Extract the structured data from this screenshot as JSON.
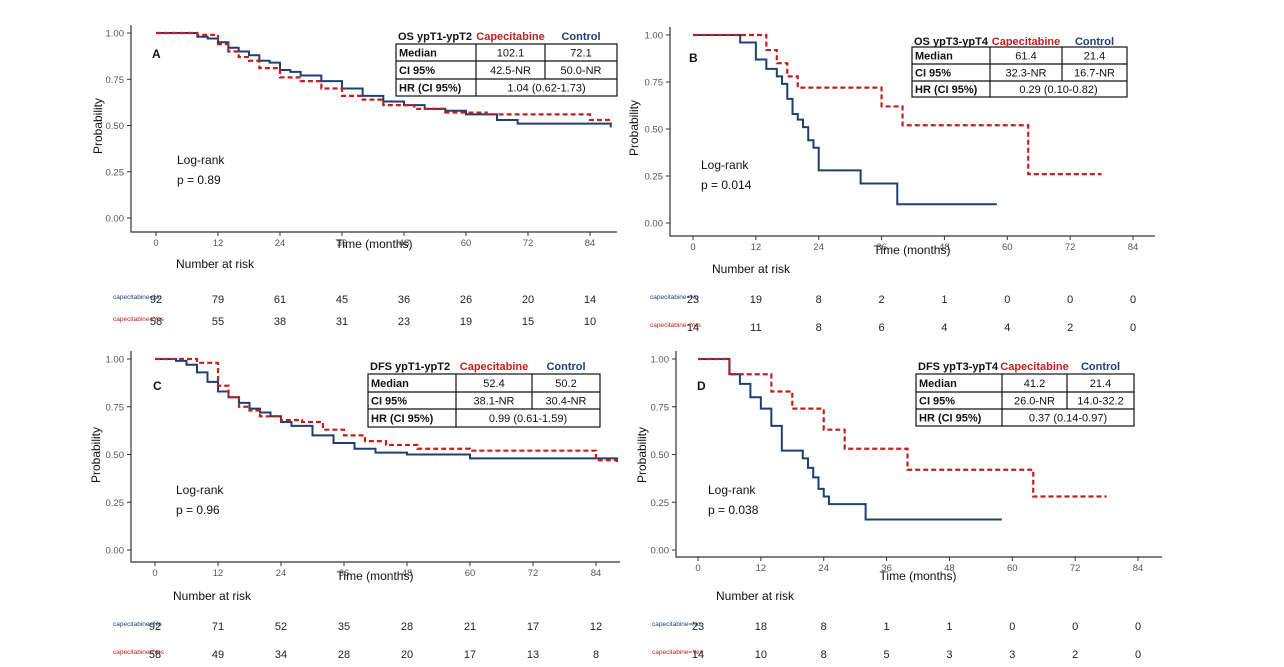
{
  "colors": {
    "control": "#1f3f73",
    "capecitabine": "#c0211f",
    "axis": "#333333"
  },
  "chart_data": [
    {
      "panel": "A",
      "type": "line",
      "xlabel": "Time (months)",
      "ylabel": "Probability",
      "xlim": [
        -3,
        88
      ],
      "ylim": [
        0,
        1
      ],
      "xticks": [
        "0",
        "12",
        "24",
        "36",
        "48",
        "60",
        "72",
        "84"
      ],
      "yticks": [
        "0.00",
        "0.25",
        "0.50",
        "0.75",
        "1.00"
      ],
      "logrank_label": "Log-rank",
      "pvalue": "p = 0.89",
      "table": {
        "title": "OS ypT1-ypT2",
        "cap_header": "Capecitabine",
        "ctrl_header": "Control",
        "median_label": "Median",
        "median_cap": "102.1",
        "median_ctrl": "72.1",
        "ci_label": "CI 95%",
        "ci_cap": "42.5-NR",
        "ci_ctrl": "50.0-NR",
        "hr_label": "HR (CI 95%)",
        "hr_value": "1.04 (0.62-1.73)"
      },
      "series": [
        {
          "name": "capecitabine=No",
          "style": "solid",
          "x": [
            0,
            6,
            8,
            10,
            12,
            14,
            16,
            18,
            20,
            22,
            24,
            26,
            28,
            32,
            36,
            40,
            44,
            48,
            52,
            56,
            60,
            66,
            70,
            88
          ],
          "y": [
            1.0,
            1.0,
            0.98,
            0.97,
            0.95,
            0.92,
            0.9,
            0.88,
            0.85,
            0.84,
            0.8,
            0.79,
            0.77,
            0.74,
            0.7,
            0.66,
            0.63,
            0.61,
            0.59,
            0.58,
            0.56,
            0.53,
            0.51,
            0.49
          ]
        },
        {
          "name": "capecitabine=Yes",
          "style": "dashed",
          "x": [
            0,
            8,
            12,
            14,
            16,
            18,
            20,
            24,
            28,
            32,
            36,
            40,
            44,
            50,
            56,
            64,
            84,
            88
          ],
          "y": [
            1.0,
            0.99,
            0.94,
            0.9,
            0.87,
            0.85,
            0.81,
            0.76,
            0.74,
            0.7,
            0.66,
            0.64,
            0.61,
            0.59,
            0.57,
            0.56,
            0.53,
            0.51
          ]
        }
      ],
      "risk": {
        "title": "Number at risk",
        "rows": [
          {
            "label": "capecitabine=No",
            "values": [
              "92",
              "79",
              "61",
              "45",
              "36",
              "26",
              "20",
              "14"
            ]
          },
          {
            "label": "capecitabine=Yes",
            "values": [
              "58",
              "55",
              "38",
              "31",
              "23",
              "19",
              "15",
              "10"
            ]
          }
        ]
      }
    },
    {
      "panel": "B",
      "type": "line",
      "xlabel": "Time (months)",
      "ylabel": "Probability",
      "xlim": [
        -3,
        88
      ],
      "ylim": [
        0,
        1
      ],
      "xticks": [
        "0",
        "12",
        "24",
        "36",
        "48",
        "60",
        "72",
        "84"
      ],
      "yticks": [
        "0.00",
        "0.25",
        "0.50",
        "0.75",
        "1.00"
      ],
      "logrank_label": "Log-rank",
      "pvalue": "p = 0.014",
      "table": {
        "title": "OS ypT3-ypT4",
        "cap_header": "Capecitabine",
        "ctrl_header": "Control",
        "median_label": "Median",
        "median_cap": "61.4",
        "median_ctrl": "21.4",
        "ci_label": "CI 95%",
        "ci_cap": "32.3-NR",
        "ci_ctrl": "16.7-NR",
        "hr_label": "HR (CI 95%)",
        "hr_value": "0.29 (0.10-0.82)"
      },
      "series": [
        {
          "name": "capecitabine=No",
          "style": "solid",
          "x": [
            0,
            9,
            12,
            14,
            16,
            17,
            18,
            19,
            20,
            21,
            22,
            23,
            24,
            32,
            39,
            58
          ],
          "y": [
            1.0,
            0.96,
            0.87,
            0.82,
            0.78,
            0.74,
            0.66,
            0.58,
            0.55,
            0.51,
            0.44,
            0.4,
            0.28,
            0.21,
            0.1,
            0.1
          ]
        },
        {
          "name": "capecitabine=Yes",
          "style": "dashed",
          "x": [
            0,
            14,
            16,
            18,
            20,
            36,
            40,
            62,
            64,
            78
          ],
          "y": [
            1.0,
            0.92,
            0.85,
            0.78,
            0.72,
            0.62,
            0.52,
            0.52,
            0.26,
            0.26
          ]
        }
      ],
      "risk": {
        "title": "Number at risk",
        "rows": [
          {
            "label": "capecitabine=No",
            "values": [
              "23",
              "19",
              "8",
              "2",
              "1",
              "0",
              "0",
              "0"
            ]
          },
          {
            "label": "capecitabine=Yes",
            "values": [
              "14",
              "11",
              "8",
              "6",
              "4",
              "4",
              "2",
              "0"
            ]
          }
        ]
      }
    },
    {
      "panel": "C",
      "type": "line",
      "xlabel": "Time (months)",
      "ylabel": "Probability",
      "xlim": [
        -3,
        88
      ],
      "ylim": [
        0,
        1
      ],
      "xticks": [
        "0",
        "12",
        "24",
        "36",
        "48",
        "60",
        "72",
        "84"
      ],
      "yticks": [
        "0.00",
        "0.25",
        "0.50",
        "0.75",
        "1.00"
      ],
      "logrank_label": "Log-rank",
      "pvalue": "p = 0.96",
      "table": {
        "title": "DFS ypT1-ypT2",
        "cap_header": "Capecitabine",
        "ctrl_header": "Control",
        "median_label": "Median",
        "median_cap": "52.4",
        "median_ctrl": "50.2",
        "ci_label": "CI 95%",
        "ci_cap": "38.1-NR",
        "ci_ctrl": "30.4-NR",
        "hr_label": "HR (CI 95%)",
        "hr_value": "0.99 (0.61-1.59)"
      },
      "series": [
        {
          "name": "capecitabine=No",
          "style": "solid",
          "x": [
            0,
            4,
            6,
            8,
            10,
            12,
            14,
            16,
            18,
            20,
            22,
            24,
            26,
            30,
            34,
            38,
            42,
            48,
            60,
            88
          ],
          "y": [
            1.0,
            0.99,
            0.97,
            0.93,
            0.88,
            0.83,
            0.8,
            0.77,
            0.74,
            0.72,
            0.7,
            0.67,
            0.65,
            0.6,
            0.56,
            0.53,
            0.51,
            0.5,
            0.48,
            0.47
          ]
        },
        {
          "name": "capecitabine=Yes",
          "style": "dashed",
          "x": [
            0,
            8,
            12,
            14,
            16,
            18,
            20,
            24,
            28,
            32,
            36,
            40,
            44,
            50,
            56,
            60,
            84,
            88
          ],
          "y": [
            1.0,
            0.98,
            0.86,
            0.8,
            0.75,
            0.73,
            0.7,
            0.68,
            0.67,
            0.63,
            0.6,
            0.57,
            0.55,
            0.53,
            0.53,
            0.52,
            0.47,
            0.46
          ]
        }
      ],
      "risk": {
        "title": "Number at risk",
        "rows": [
          {
            "label": "capecitabine=No",
            "values": [
              "92",
              "71",
              "52",
              "35",
              "28",
              "21",
              "17",
              "12"
            ]
          },
          {
            "label": "capecitabine=Yes",
            "values": [
              "58",
              "49",
              "34",
              "28",
              "20",
              "17",
              "13",
              "8"
            ]
          }
        ]
      }
    },
    {
      "panel": "D",
      "type": "line",
      "xlabel": "Time (months)",
      "ylabel": "Probability",
      "xlim": [
        -3,
        88
      ],
      "ylim": [
        0,
        1
      ],
      "xticks": [
        "0",
        "12",
        "24",
        "36",
        "48",
        "60",
        "72",
        "84"
      ],
      "yticks": [
        "0.00",
        "0.25",
        "0.50",
        "0.75",
        "1.00"
      ],
      "logrank_label": "Log-rank",
      "pvalue": "p = 0.038",
      "table": {
        "title": "DFS ypT3-ypT4",
        "cap_header": "Capecitabine",
        "ctrl_header": "Control",
        "median_label": "Median",
        "median_cap": "41.2",
        "median_ctrl": "21.4",
        "ci_label": "CI 95%",
        "ci_cap": "26.0-NR",
        "ci_ctrl": "14.0-32.2",
        "hr_label": "HR (CI 95%)",
        "hr_value": "0.37 (0.14-0.97)"
      },
      "series": [
        {
          "name": "capecitabine=No",
          "style": "solid",
          "x": [
            0,
            6,
            8,
            10,
            12,
            14,
            16,
            20,
            21,
            22,
            23,
            24,
            25,
            32,
            58
          ],
          "y": [
            1.0,
            0.92,
            0.87,
            0.8,
            0.74,
            0.65,
            0.52,
            0.48,
            0.43,
            0.38,
            0.32,
            0.28,
            0.24,
            0.16,
            0.16
          ]
        },
        {
          "name": "capecitabine=Yes",
          "style": "dashed",
          "x": [
            0,
            6,
            14,
            18,
            24,
            28,
            33,
            40,
            62,
            64,
            78
          ],
          "y": [
            1.0,
            0.92,
            0.83,
            0.74,
            0.63,
            0.53,
            0.53,
            0.42,
            0.42,
            0.28,
            0.28
          ]
        }
      ],
      "risk": {
        "title": "Number at risk",
        "rows": [
          {
            "label": "capecitabine=No",
            "values": [
              "23",
              "18",
              "8",
              "1",
              "1",
              "0",
              "0",
              "0"
            ]
          },
          {
            "label": "capecitabine=Yes",
            "values": [
              "14",
              "10",
              "8",
              "5",
              "3",
              "3",
              "2",
              "0"
            ]
          }
        ]
      }
    }
  ]
}
